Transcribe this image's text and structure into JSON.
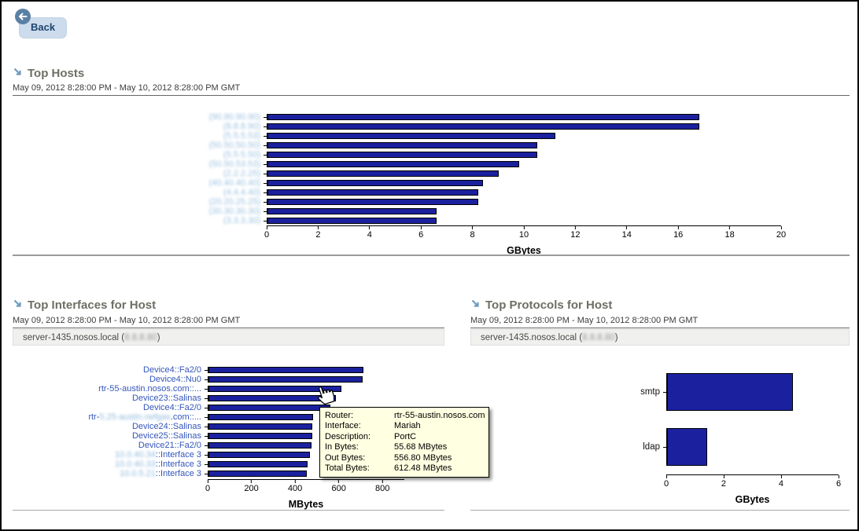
{
  "back_button": {
    "label": "Back"
  },
  "sections": {
    "top_hosts": {
      "title": "Top Hosts",
      "date_range": "May 09, 2012 8:28:00 PM - May 10, 2012 8:28:00 PM GMT"
    },
    "top_interfaces": {
      "title": "Top Interfaces for Host",
      "date_range": "May 09, 2012 8:28:00 PM - May 10, 2012 8:28:00 PM GMT",
      "host_selector": {
        "host": "server-1435.nosos.local",
        "ip_prefix": " (",
        "ip_redacted": "8.8.8.80",
        "ip_suffix": ")"
      }
    },
    "top_protocols": {
      "title": "Top Protocols for Host",
      "date_range": "May 09, 2012 8:28:00 PM - May 10, 2012 8:28:00 PM GMT",
      "host_selector": {
        "host": "server-1435.nosos.local",
        "ip_prefix": " (",
        "ip_redacted": "8.8.8.80",
        "ip_suffix": ")"
      }
    }
  },
  "tooltip": {
    "rows": [
      {
        "label": "Router:",
        "value": "rtr-55-austin.nosos.com"
      },
      {
        "label": "Interface:",
        "value": "Mariah"
      },
      {
        "label": "Description:",
        "value": "PortC"
      },
      {
        "label": "In Bytes:",
        "value": "55.68 MBytes"
      },
      {
        "label": "Out Bytes:",
        "value": "556.80 MBytes"
      },
      {
        "label": "Total Bytes:",
        "value": "612.48 MBytes"
      }
    ]
  },
  "chart_data": [
    {
      "id": "top_hosts",
      "type": "bar",
      "orientation": "horizontal",
      "title": "Top Hosts",
      "xlabel": "GBytes",
      "xlim": [
        0,
        20
      ],
      "ticks": [
        0,
        2,
        4,
        6,
        8,
        10,
        12,
        14,
        16,
        18,
        20
      ],
      "grid": false,
      "labels_interactable": true,
      "categories": [
        {
          "redacted": "(90.90.90.90)"
        },
        {
          "redacted": "(8.8.8.90)"
        },
        {
          "redacted": "(5.5.5.53)"
        },
        {
          "redacted": "(50.50.50.50)"
        },
        {
          "redacted": "(5.5.5.50)"
        },
        {
          "redacted": "(50.50.53.53)"
        },
        {
          "redacted": "(2.2.2.25)"
        },
        {
          "redacted": "(40.40.40.40)"
        },
        {
          "redacted": "(4.4.4.40)"
        },
        {
          "redacted": "(20.20.25.25)"
        },
        {
          "redacted": "(30.30.30.30)"
        },
        {
          "redacted": "(3.3.3.30)"
        }
      ],
      "values": [
        16.8,
        16.8,
        11.2,
        10.5,
        10.5,
        9.8,
        9.0,
        8.4,
        8.2,
        8.2,
        6.6,
        6.6
      ]
    },
    {
      "id": "top_interfaces",
      "type": "bar",
      "orientation": "horizontal",
      "title": "Top Interfaces for Host",
      "xlabel": "MBytes",
      "xlim": [
        0,
        900
      ],
      "ticks": [
        0,
        200,
        400,
        600,
        800
      ],
      "grid": false,
      "labels_interactable": true,
      "categories": [
        {
          "pre": "Device4::Fa2/0"
        },
        {
          "pre": "Device4::Nu0"
        },
        {
          "pre": "rtr-55-austin.nosos.com::..."
        },
        {
          "pre": "Device23::Salinas"
        },
        {
          "pre": "Device4::Fa2/0"
        },
        {
          "pre": "rtr-",
          "redacted": "5.25-austin.nefgas",
          "post": ".com::..."
        },
        {
          "pre": "Device24::Salinas"
        },
        {
          "pre": "Device25::Salinas"
        },
        {
          "pre": "Device21::Fa2/0"
        },
        {
          "redacted": "10.0.40.34",
          "post": "::Interface 3"
        },
        {
          "redacted": "10.0.40.33",
          "post": "::Interface 3"
        },
        {
          "redacted": "10.0.5.21",
          "post": "::Interface 3"
        }
      ],
      "values": [
        712,
        708,
        612,
        587,
        560,
        480,
        478,
        478,
        472,
        466,
        456,
        452
      ]
    },
    {
      "id": "top_protocols",
      "type": "bar",
      "orientation": "horizontal",
      "title": "Top Protocols for Host",
      "xlabel": "GBytes",
      "xlim": [
        0,
        6
      ],
      "ticks": [
        0,
        2,
        4,
        6
      ],
      "grid": false,
      "labels_interactable": false,
      "categories": [
        {
          "pre": "smtp"
        },
        {
          "pre": "ldap"
        }
      ],
      "values": [
        4.4,
        1.4
      ]
    }
  ],
  "colors": {
    "bar_fill": "#1b219e",
    "bar_border": "#000000",
    "link_label": "#3356bb",
    "redacted_label": "#9ac0e0",
    "section_heading": "#6e6e64",
    "section_arrow": "#6f9bbf",
    "tooltip_bg": "#ffffe1",
    "selector_bg": "#f0f0ef",
    "back_pill_bg": "#cddcec",
    "back_circle_bg": "#5b80a5"
  }
}
